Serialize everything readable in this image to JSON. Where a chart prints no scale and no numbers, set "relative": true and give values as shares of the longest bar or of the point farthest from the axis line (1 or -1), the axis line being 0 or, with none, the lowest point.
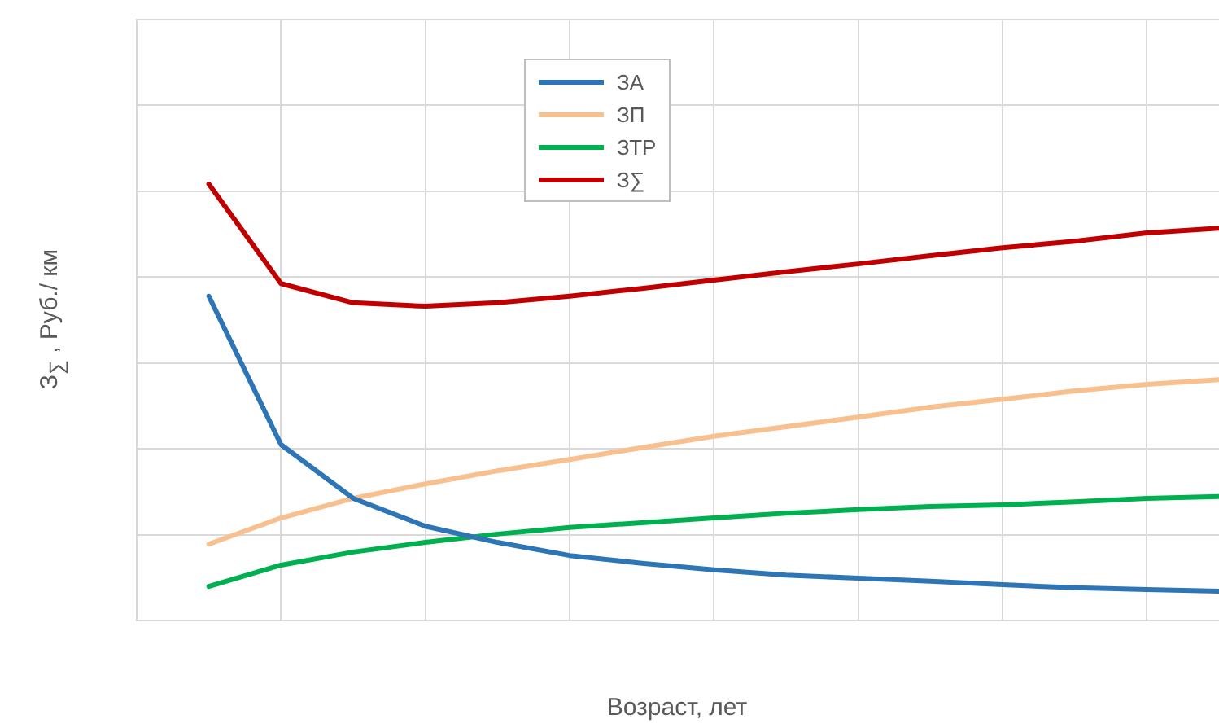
{
  "chart_data": {
    "type": "line",
    "relative": true,
    "xlabel": "Возраст, лет",
    "ylabel": "З$_{∑}$ , Руб./ км",
    "grid": true,
    "legend": "top",
    "marker": "none",
    "line_style": "solid",
    "categories": [
      null,
      null,
      null,
      null,
      null,
      null,
      null,
      null,
      null,
      null,
      null,
      null,
      null,
      null,
      null
    ],
    "series": [
      {
        "name": "ЗА",
        "color": "#2e75b6",
        "values": [
          0.743,
          0.403,
          0.28,
          0.216,
          0.179,
          0.149,
          0.131,
          0.116,
          0.104,
          0.097,
          0.09,
          0.082,
          0.075,
          0.071,
          0.067
        ]
      },
      {
        "name": "ЗП",
        "color": "#f8c08f",
        "values": [
          0.175,
          0.235,
          0.28,
          0.313,
          0.343,
          0.369,
          0.396,
          0.422,
          0.444,
          0.466,
          0.489,
          0.507,
          0.526,
          0.541,
          0.552
        ]
      },
      {
        "name": "ЗТР",
        "color": "#00b050",
        "values": [
          0.078,
          0.127,
          0.157,
          0.179,
          0.198,
          0.213,
          0.224,
          0.235,
          0.246,
          0.254,
          0.261,
          0.265,
          0.272,
          0.28,
          0.284
        ]
      },
      {
        "name": "З∑",
        "color": "#c00000",
        "values": [
          1,
          0.772,
          0.728,
          0.72,
          0.728,
          0.743,
          0.761,
          0.78,
          0.799,
          0.817,
          0.836,
          0.854,
          0.869,
          0.888,
          0.899
        ]
      }
    ]
  }
}
